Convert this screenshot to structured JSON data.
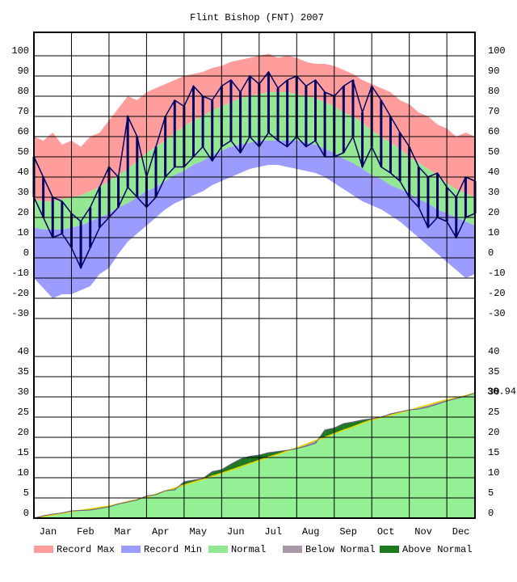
{
  "chart_data": [
    {
      "type": "range",
      "title": "Flint Bishop (FNT) 2007",
      "categories": [
        "Jan",
        null,
        null,
        null,
        "Feb",
        null,
        null,
        null,
        "Mar",
        null,
        null,
        null,
        "Apr",
        null,
        null,
        null,
        "May",
        null,
        null,
        null,
        "Jun",
        null,
        null,
        null,
        "Jul",
        null,
        null,
        null,
        "Aug",
        null,
        null,
        null,
        "Sep",
        null,
        null,
        null,
        "Oct",
        null,
        null,
        null,
        "Nov",
        null,
        null,
        null,
        "Dec",
        null,
        null,
        null
      ],
      "ylim": [
        -38.8,
        111.6
      ],
      "yticks": [
        -30,
        -20,
        -10,
        0,
        10,
        20,
        30,
        40,
        50,
        60,
        70,
        80,
        90,
        100
      ],
      "grid": true,
      "series": [
        {
          "name": "Record Max",
          "color": "#ff9c9c",
          "values": [
            60,
            58,
            62,
            56,
            58,
            55,
            60,
            62,
            68,
            74,
            80,
            78,
            82,
            84,
            86,
            88,
            90,
            91,
            92,
            94,
            95,
            97,
            98,
            99,
            100,
            101,
            99,
            100,
            99,
            97,
            96,
            96,
            95,
            93,
            91,
            88,
            86,
            84,
            82,
            78,
            76,
            72,
            70,
            66,
            64,
            60,
            62,
            60
          ]
        },
        {
          "name": "Record Min",
          "color": "#9c9cff",
          "values": [
            -10,
            -15,
            -20,
            -18,
            -18,
            -16,
            -14,
            -8,
            -5,
            2,
            8,
            12,
            16,
            20,
            24,
            27,
            29,
            31,
            33,
            36,
            38,
            40,
            42,
            44,
            45,
            46,
            46,
            45,
            44,
            43,
            42,
            40,
            37,
            34,
            31,
            28,
            26,
            24,
            21,
            18,
            14,
            10,
            6,
            2,
            -2,
            -6,
            -10,
            -8
          ]
        },
        {
          "name": "Normal",
          "color": "#94e894",
          "values": [
            29,
            28,
            28,
            29,
            30,
            31,
            33,
            35,
            38,
            41,
            44,
            48,
            52,
            55,
            58,
            62,
            65,
            68,
            70,
            73,
            75,
            77,
            79,
            80,
            81,
            82,
            82,
            82,
            81,
            80,
            79,
            77,
            75,
            72,
            70,
            67,
            63,
            60,
            57,
            54,
            50,
            47,
            44,
            41,
            37,
            34,
            32,
            30
          ],
          "lows": [
            15,
            14,
            14,
            14,
            15,
            16,
            18,
            20,
            22,
            25,
            27,
            30,
            33,
            35,
            38,
            41,
            43,
            46,
            48,
            51,
            53,
            55,
            56,
            57,
            58,
            58,
            58,
            58,
            58,
            57,
            56,
            54,
            52,
            49,
            47,
            44,
            41,
            39,
            36,
            34,
            32,
            29,
            27,
            24,
            22,
            20,
            18,
            16
          ]
        },
        {
          "color": "#000066",
          "values": [
            50,
            40,
            30,
            28,
            22,
            18,
            25,
            35,
            45,
            40,
            70,
            60,
            40,
            55,
            70,
            78,
            75,
            85,
            80,
            78,
            85,
            88,
            82,
            90,
            86,
            92,
            84,
            88,
            90,
            85,
            88,
            82,
            80,
            85,
            88,
            72,
            85,
            78,
            70,
            62,
            55,
            45,
            40,
            42,
            35,
            30,
            40,
            38
          ],
          "lows": [
            30,
            20,
            10,
            12,
            5,
            -5,
            5,
            15,
            20,
            25,
            35,
            30,
            25,
            30,
            40,
            45,
            45,
            50,
            55,
            48,
            55,
            58,
            52,
            60,
            55,
            62,
            58,
            55,
            60,
            55,
            58,
            50,
            50,
            52,
            60,
            45,
            55,
            45,
            42,
            38,
            30,
            25,
            15,
            20,
            18,
            10,
            20,
            22
          ]
        }
      ],
      "legend": "bottom"
    },
    {
      "type": "area",
      "ylim": [
        0,
        45
      ],
      "yticks": [
        0,
        5,
        10,
        15,
        20,
        25,
        30,
        35,
        40
      ],
      "grid": true,
      "series": [
        {
          "color": "#94f094",
          "line_color": "#e8d800",
          "values": [
            0,
            0.4,
            0.8,
            1.2,
            1.6,
            1.95,
            2.3,
            2.65,
            3.0,
            3.55,
            4.1,
            4.65,
            5.2,
            5.95,
            6.7,
            7.45,
            8.2,
            8.9,
            9.6,
            10.4,
            11.1,
            11.9,
            12.7,
            13.5,
            14.3,
            15.1,
            15.8,
            16.6,
            17.4,
            18.3,
            19.2,
            20.0,
            20.9,
            21.8,
            22.6,
            23.5,
            24.3,
            24.9,
            25.5,
            26.1,
            26.7,
            27.4,
            28.0,
            28.7,
            29.3,
            29.8,
            30.3,
            31.0
          ]
        },
        {
          "color": "#6a5a8a",
          "values": [
            0,
            0.6,
            1.0,
            1.3,
            1.8,
            1.9,
            2.0,
            2.4,
            2.8,
            3.5,
            4.0,
            4.5,
            5.5,
            5.8,
            6.8,
            7.0,
            9.0,
            9.4,
            9.8,
            11.5,
            12.0,
            13.4,
            14.6,
            15.3,
            15.6,
            16.2,
            16.5,
            16.8,
            17.2,
            17.8,
            18.5,
            21.8,
            22.3,
            23.4,
            23.8,
            24.3,
            24.6,
            25.0,
            25.8,
            26.3,
            26.8,
            27.0,
            27.5,
            28.2,
            29.0,
            29.6,
            30.2,
            30.94
          ]
        }
      ],
      "below_normal": {
        "name": "Below Normal",
        "color": "#a898a8"
      },
      "above_normal": {
        "name": "Above Normal",
        "color": "#1e7a1e"
      }
    }
  ]
}
